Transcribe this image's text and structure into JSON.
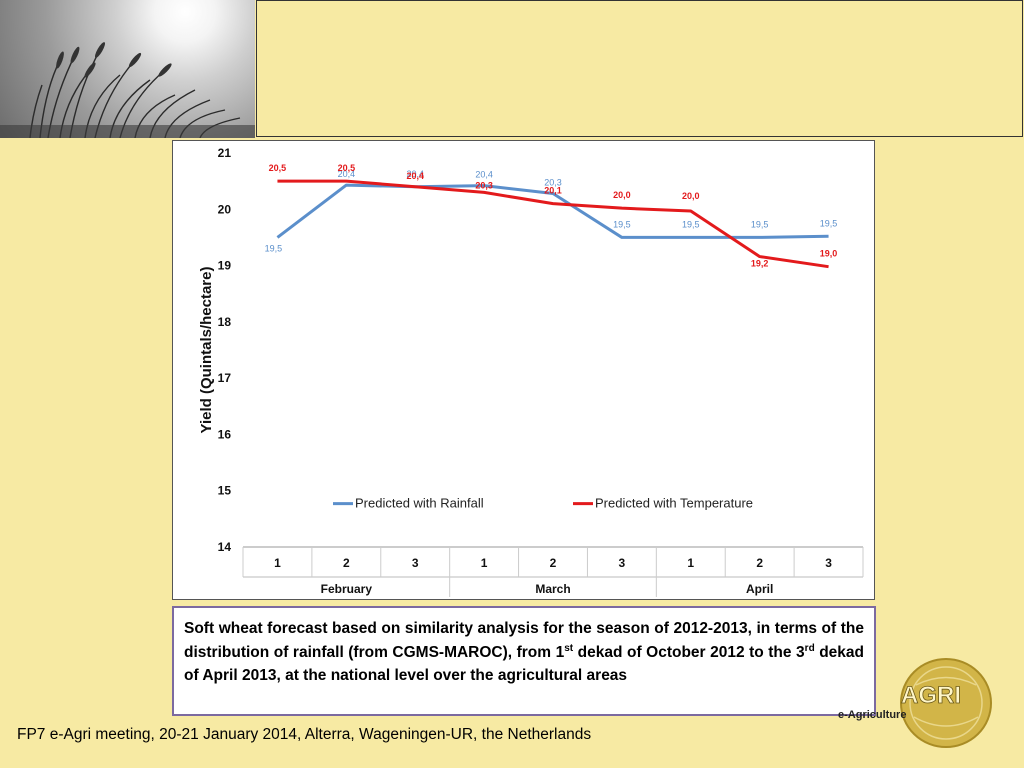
{
  "chart_data": {
    "type": "line",
    "ylabel": "Yield (Quintals/hectare)",
    "ylim": [
      14,
      21
    ],
    "yticks": [
      14,
      15,
      16,
      17,
      18,
      19,
      20,
      21
    ],
    "categories": [
      "1",
      "2",
      "3",
      "1",
      "2",
      "3",
      "1",
      "2",
      "3"
    ],
    "groups": [
      {
        "label": "February",
        "span": 3
      },
      {
        "label": "March",
        "span": 3
      },
      {
        "label": "April",
        "span": 3
      }
    ],
    "legend_position": "bottom",
    "grid": false,
    "series": [
      {
        "name": "Predicted with Rainfall",
        "color": "#5b8fcb",
        "values": [
          19.5,
          20.43,
          20.4,
          20.42,
          20.28,
          19.5,
          19.5,
          19.5,
          19.52
        ],
        "labels": [
          "19,5",
          "20,4",
          "20,4",
          "20,4",
          "20,3",
          "19,5",
          "19,5",
          "19,5",
          "19,5"
        ]
      },
      {
        "name": "Predicted with Temperature",
        "color": "#e31a1c",
        "values": [
          20.5,
          20.5,
          20.4,
          20.3,
          20.1,
          20.02,
          19.97,
          19.16,
          18.98
        ],
        "labels": [
          "20,5",
          "20,5",
          "20,4",
          "20,3",
          "20,1",
          "20,0",
          "20,0",
          "19,2",
          "19,0"
        ]
      }
    ]
  },
  "caption": {
    "text_before_1": "Soft wheat forecast based on similarity analysis for the season of 2012-2013, in terms of the distribution of rainfall (from CGMS-MAROC), from 1",
    "sup_1": "st",
    "text_between": " dekad of October 2012 to the 3",
    "sup_2": "rd",
    "text_after_2": " dekad of April 2013, at the national level over the agricultural areas"
  },
  "logo": {
    "text": "AGRI",
    "subtext": "e-Agriculture"
  },
  "footer": "FP7 e-Agri meeting, 20-21 January 2014, Alterra, Wageningen-UR, the Netherlands",
  "colors": {
    "background": "#f7eaa3",
    "caption_border": "#7c6aa0",
    "logo_gold": "#c9a835"
  }
}
